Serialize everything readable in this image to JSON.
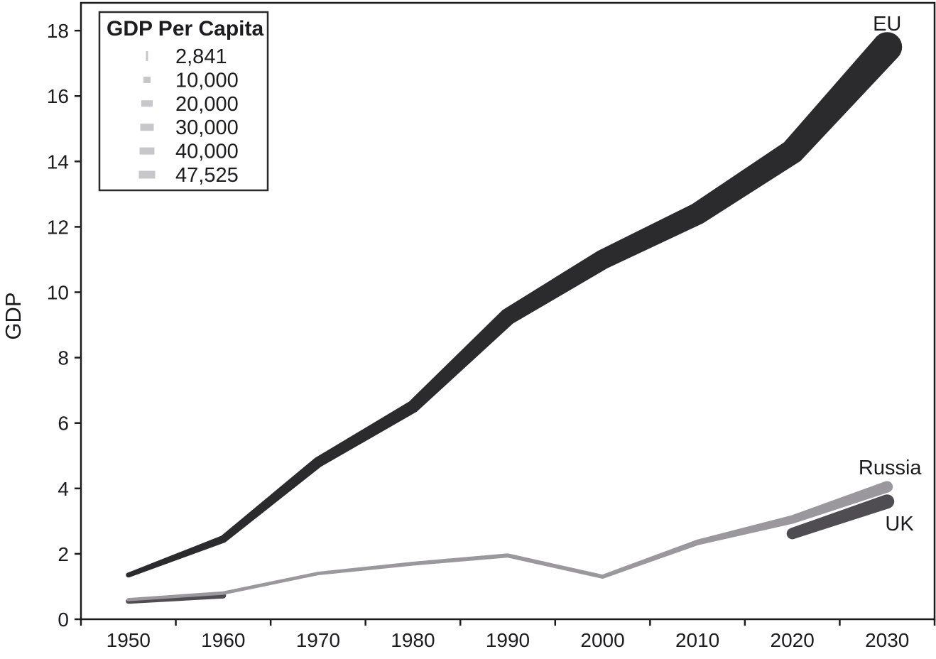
{
  "chart_data": {
    "type": "line",
    "title": "",
    "xlabel": "",
    "ylabel": "GDP",
    "x_axis_range": [
      1945,
      2035
    ],
    "ylim": [
      0,
      18.85
    ],
    "grid": false,
    "x_tick_marks": [
      1945,
      1955,
      1965,
      1975,
      1985,
      1995,
      2005,
      2015,
      2025,
      2035
    ],
    "x_tick_labels": [
      1950,
      1960,
      1970,
      1980,
      1990,
      2000,
      2010,
      2020,
      2030
    ],
    "y_ticks": [
      0,
      2,
      4,
      6,
      8,
      10,
      12,
      14,
      16,
      18
    ],
    "line_width_encodes": "GDP Per Capita",
    "legend": {
      "title": "GDP Per Capita",
      "position": "top-left",
      "entries": [
        {
          "label": "2,841",
          "swatch_w": 3,
          "swatch_h": 14
        },
        {
          "label": "10,000",
          "swatch_w": 10,
          "swatch_h": 9
        },
        {
          "label": "20,000",
          "swatch_w": 16,
          "swatch_h": 9
        },
        {
          "label": "30,000",
          "swatch_w": 19,
          "swatch_h": 10
        },
        {
          "label": "40,000",
          "swatch_w": 21,
          "swatch_h": 10
        },
        {
          "label": "47,525",
          "swatch_w": 23,
          "swatch_h": 11
        }
      ]
    },
    "series": [
      {
        "name": "EU",
        "color": "#2b2a2c",
        "segments": [
          {
            "x": [
              1950,
              1960,
              1970,
              1980,
              1990,
              2000,
              2010,
              2020,
              2030
            ],
            "values": [
              1.35,
              2.45,
              4.8,
              6.5,
              9.25,
              11.0,
              12.4,
              14.3,
              17.5
            ],
            "widths": [
              7,
              11,
              15,
              18,
              24,
              28,
              31,
              35,
              42
            ]
          }
        ]
      },
      {
        "name": "UK",
        "color": "#4f4d52",
        "segments": [
          {
            "x": [
              1950,
              1960
            ],
            "values": [
              0.55,
              0.72
            ],
            "widths": [
              7,
              8
            ]
          },
          {
            "x": [
              2020,
              2030
            ],
            "values": [
              2.62,
              3.6
            ],
            "widths": [
              16,
              20
            ]
          }
        ]
      },
      {
        "name": "Russia",
        "color": "#9a989d",
        "segments": [
          {
            "x": [
              1950,
              1960,
              1970,
              1980,
              1990,
              2000,
              2010,
              2020,
              2030
            ],
            "values": [
              0.6,
              0.8,
              1.4,
              1.7,
              1.95,
              1.3,
              2.35,
              3.05,
              4.05
            ],
            "widths": [
              4.5,
              5,
              5,
              5.5,
              6,
              6,
              8,
              12,
              16
            ]
          }
        ]
      }
    ],
    "annotations": [
      {
        "label": "EU",
        "year": 2030,
        "value": 18.0
      },
      {
        "label": "Russia",
        "year": 2030.3,
        "value": 4.43
      },
      {
        "label": "UK",
        "year": 2031.3,
        "value": 2.72
      }
    ]
  },
  "colors": {
    "axis": "#1c1b1d",
    "text": "#1c1b1d",
    "legend_swatch": "#c7c6ca",
    "background": "#ffffff"
  }
}
